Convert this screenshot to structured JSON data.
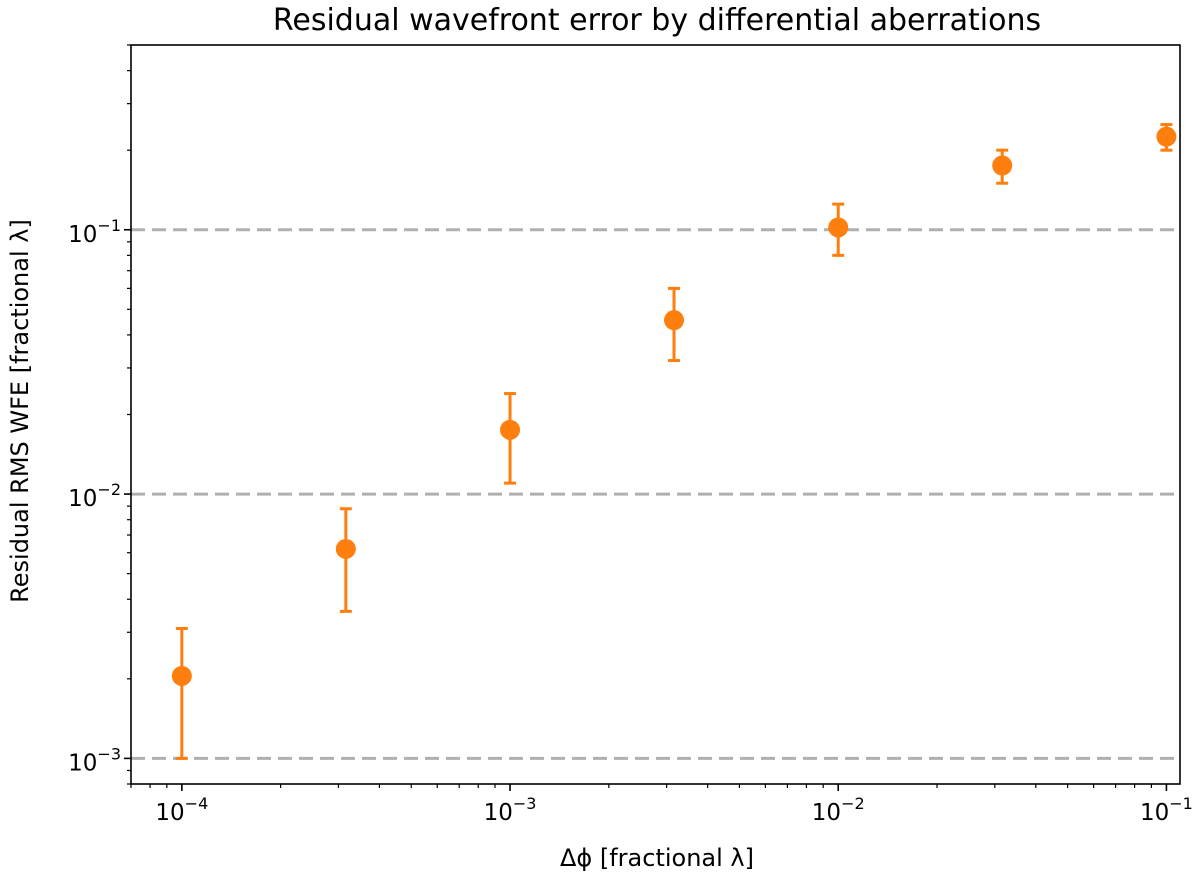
{
  "chart_data": {
    "type": "scatter",
    "title": "Residual wavefront error by differential aberrations",
    "xlabel": "Δϕ [fractional λ]",
    "ylabel": "Residual RMS WFE [fractional λ]",
    "xscale": "log",
    "yscale": "log",
    "xlim": [
      7e-05,
      0.11
    ],
    "ylim": [
      0.0008,
      0.5
    ],
    "x_major_ticks": [
      {
        "value": 0.0001,
        "base": "10",
        "exp": "−4"
      },
      {
        "value": 0.001,
        "base": "10",
        "exp": "−3"
      },
      {
        "value": 0.01,
        "base": "10",
        "exp": "−2"
      },
      {
        "value": 0.1,
        "base": "10",
        "exp": "−1"
      }
    ],
    "y_major_ticks": [
      {
        "value": 0.001,
        "base": "10",
        "exp": "−3"
      },
      {
        "value": 0.01,
        "base": "10",
        "exp": "−2"
      },
      {
        "value": 0.1,
        "base": "10",
        "exp": "−1"
      }
    ],
    "reference_lines": [
      0.001,
      0.01,
      0.1
    ],
    "reference_line_style": "dashed",
    "series": [
      {
        "color": "#ff7f0e",
        "marker": "circle",
        "points": [
          {
            "x": 0.0001,
            "y": 0.00205,
            "ylow": 0.001,
            "yhigh": 0.0031
          },
          {
            "x": 0.000316,
            "y": 0.0062,
            "ylow": 0.0036,
            "yhigh": 0.0088
          },
          {
            "x": 0.001,
            "y": 0.0175,
            "ylow": 0.011,
            "yhigh": 0.024
          },
          {
            "x": 0.00316,
            "y": 0.0455,
            "ylow": 0.032,
            "yhigh": 0.06
          },
          {
            "x": 0.01,
            "y": 0.102,
            "ylow": 0.08,
            "yhigh": 0.125
          },
          {
            "x": 0.0316,
            "y": 0.175,
            "ylow": 0.15,
            "yhigh": 0.2
          },
          {
            "x": 0.1,
            "y": 0.225,
            "ylow": 0.2,
            "yhigh": 0.25
          }
        ]
      }
    ],
    "colors": {
      "series": "#ff7f0e",
      "reference": "#b0b0b0",
      "axes": "#000000"
    }
  }
}
